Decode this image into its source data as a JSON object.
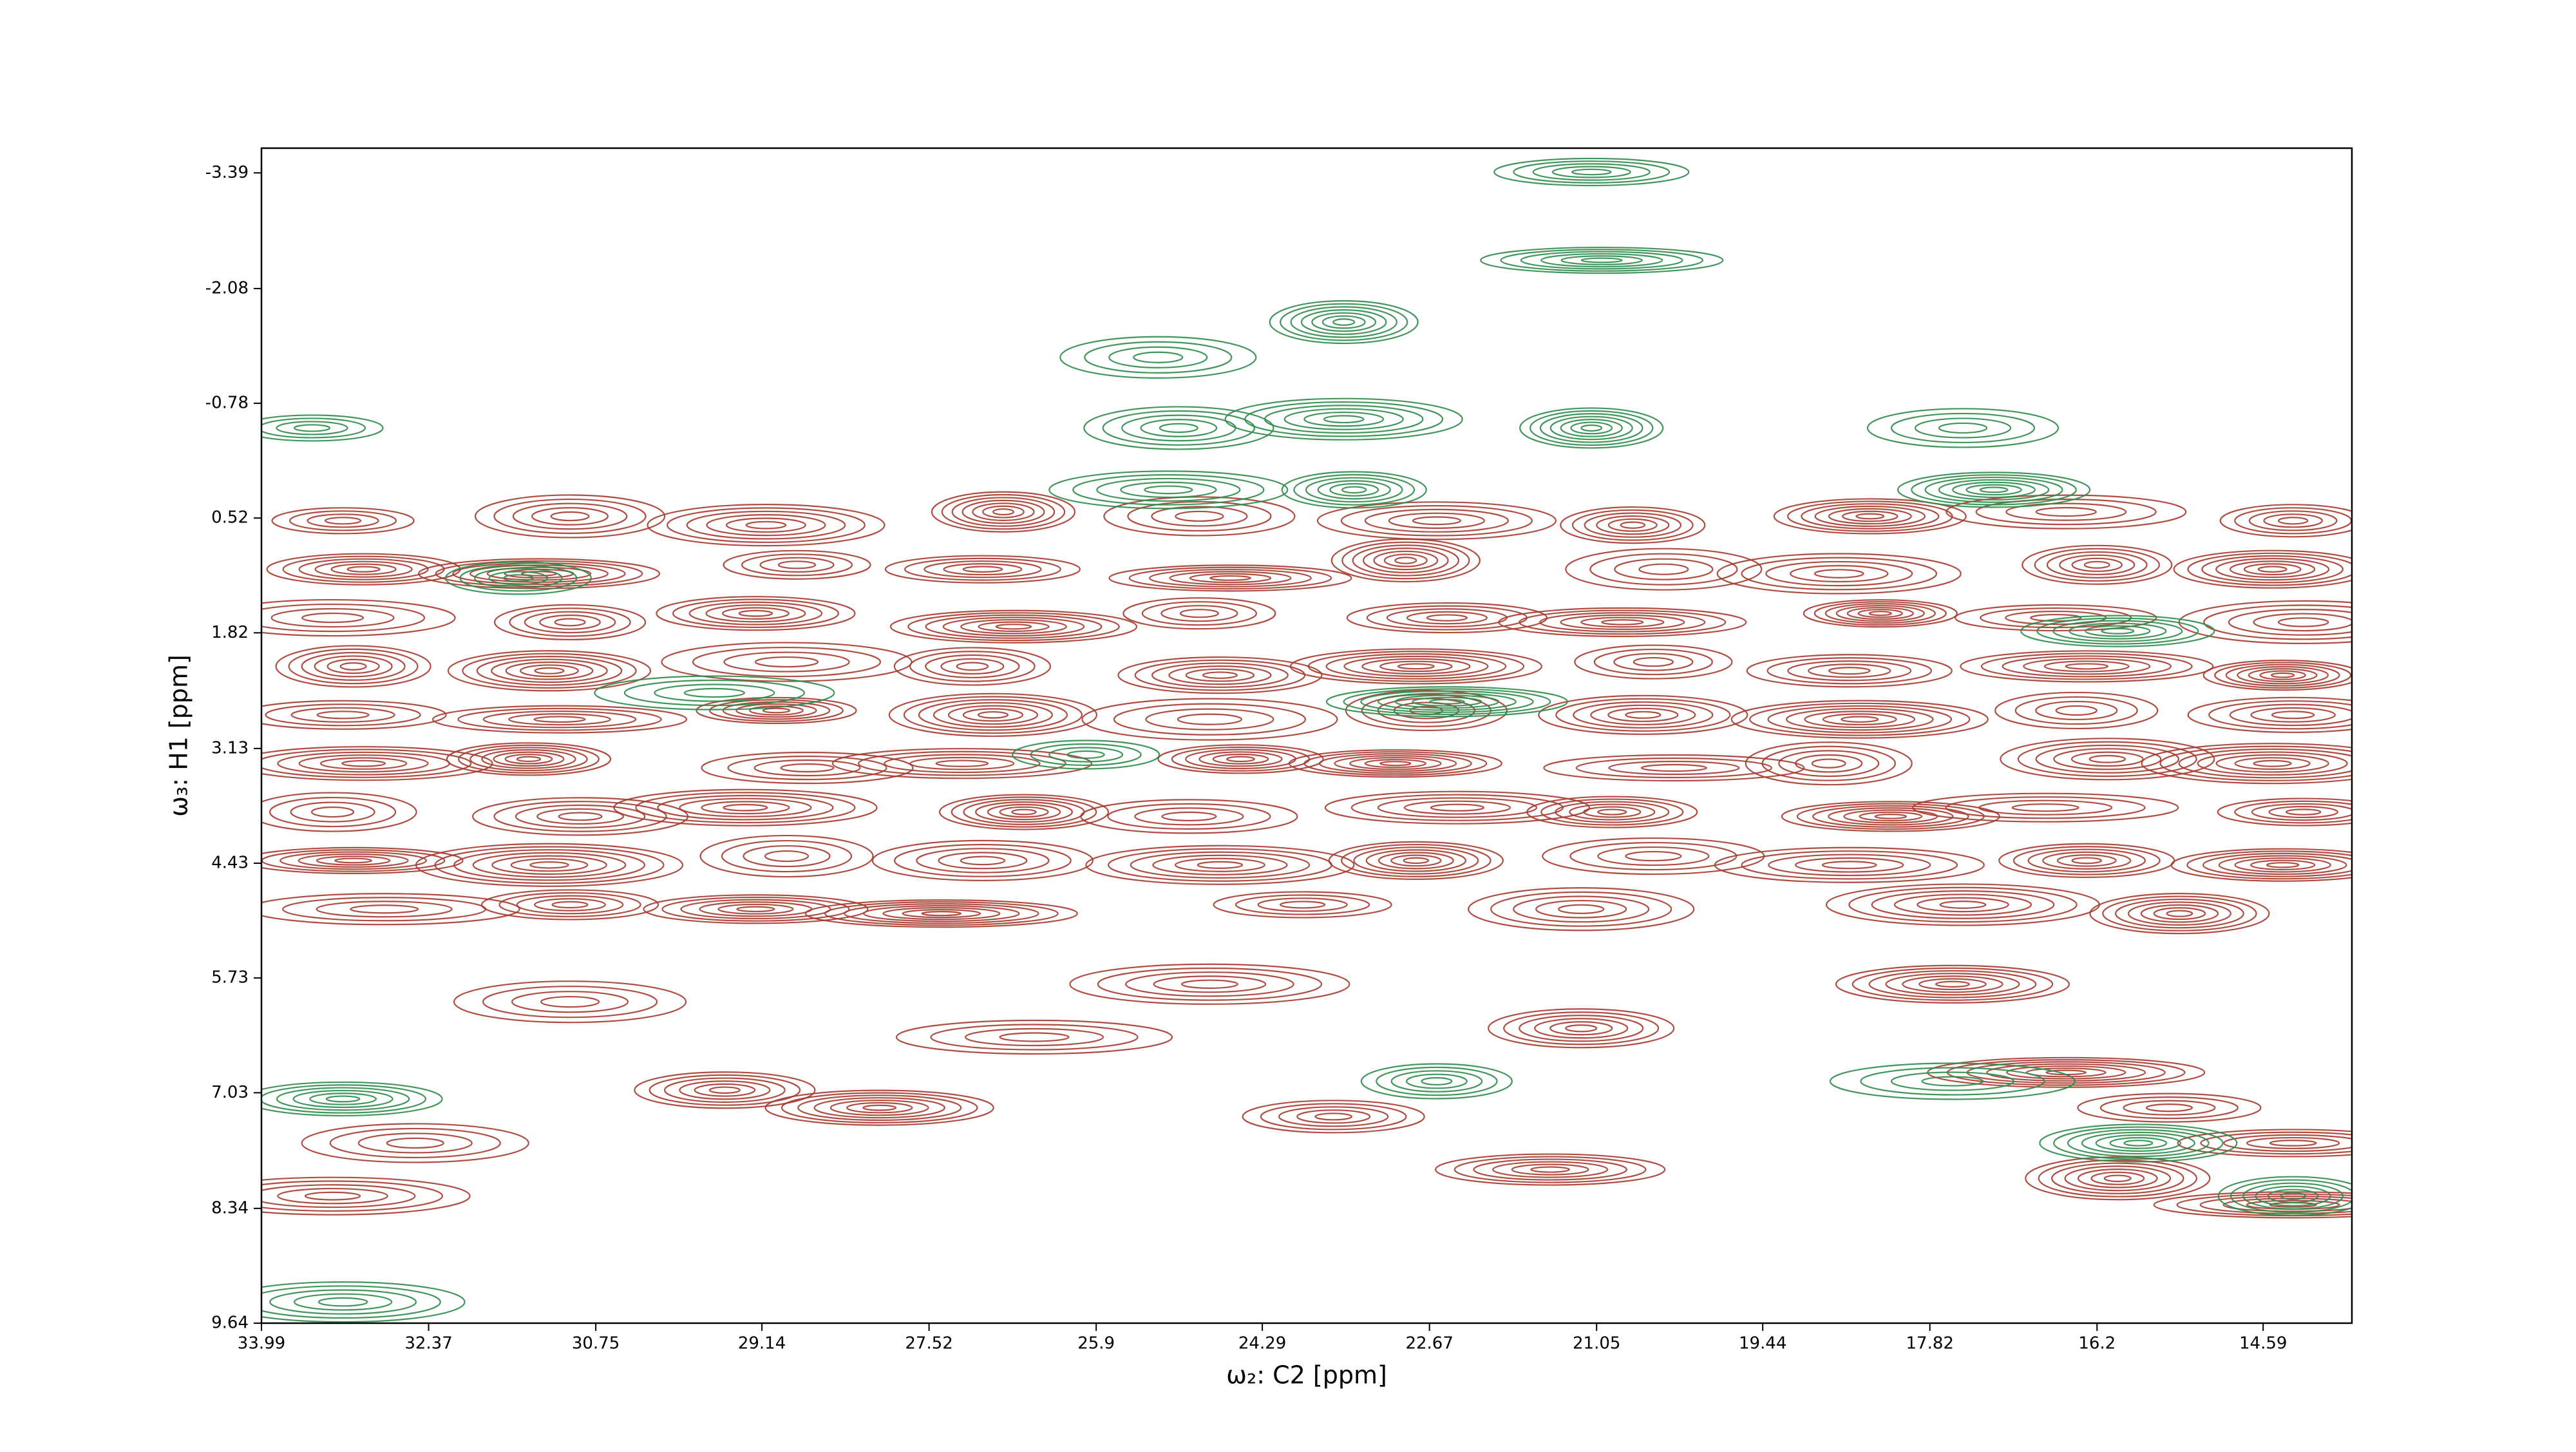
{
  "chart_data": {
    "type": "contour",
    "x_label": "ω₂: C2 [ppm]",
    "y_label": "ω₃: H1 [ppm]",
    "xlim": [
      33.99,
      13.73
    ],
    "ylim": [
      9.64,
      -3.67
    ],
    "xticks": [
      33.99,
      32.37,
      30.75,
      29.14,
      27.52,
      25.9,
      24.29,
      22.67,
      21.05,
      19.44,
      17.82,
      16.2,
      14.59
    ],
    "yticks": [
      -3.39,
      -2.08,
      -0.78,
      0.52,
      1.82,
      3.13,
      4.43,
      5.73,
      7.03,
      8.34,
      9.64
    ],
    "series": [
      {
        "color": "#a63a2e",
        "x": [
          33.2,
          31.0,
          29.1,
          26.8,
          24.9,
          22.6,
          20.7,
          18.4,
          16.5,
          14.3,
          33.0,
          31.3,
          28.8,
          27.0,
          24.6,
          22.9,
          20.4,
          18.7,
          16.2,
          14.5,
          33.3,
          31.0,
          29.2,
          26.7,
          24.9,
          22.5,
          20.8,
          18.3,
          16.6,
          14.2,
          33.1,
          31.2,
          28.9,
          27.1,
          24.7,
          22.8,
          20.5,
          18.6,
          16.3,
          14.4,
          33.2,
          31.1,
          29.0,
          26.9,
          24.8,
          22.7,
          20.6,
          18.5,
          16.4,
          14.3,
          33.0,
          31.4,
          28.7,
          27.2,
          24.5,
          23.0,
          20.3,
          18.8,
          16.1,
          14.5,
          33.3,
          30.9,
          29.3,
          26.6,
          25.0,
          22.4,
          20.9,
          18.2,
          16.7,
          14.2,
          33.1,
          31.2,
          28.9,
          27.0,
          24.7,
          22.8,
          20.5,
          18.6,
          16.3,
          14.4,
          32.8,
          31.0,
          29.2,
          27.4,
          23.9,
          21.2,
          17.5,
          15.4,
          32.5,
          33.3,
          29.5,
          28.0,
          26.5,
          23.6,
          21.5,
          16.5,
          15.5,
          14.3,
          14.3,
          16.0,
          31.0,
          24.8,
          21.2,
          17.6
        ],
        "y": [
          0.55,
          0.5,
          0.6,
          0.45,
          0.5,
          0.55,
          0.6,
          0.5,
          0.45,
          0.55,
          1.1,
          1.15,
          1.05,
          1.1,
          1.2,
          1.0,
          1.1,
          1.15,
          1.05,
          1.1,
          1.65,
          1.7,
          1.6,
          1.75,
          1.6,
          1.65,
          1.7,
          1.6,
          1.65,
          1.7,
          2.2,
          2.25,
          2.15,
          2.2,
          2.3,
          2.2,
          2.15,
          2.25,
          2.2,
          2.3,
          2.75,
          2.8,
          2.7,
          2.75,
          2.8,
          2.7,
          2.75,
          2.8,
          2.7,
          2.75,
          3.3,
          3.25,
          3.35,
          3.3,
          3.25,
          3.3,
          3.35,
          3.3,
          3.25,
          3.3,
          3.85,
          3.9,
          3.8,
          3.85,
          3.9,
          3.8,
          3.85,
          3.9,
          3.8,
          3.85,
          4.4,
          4.45,
          4.35,
          4.4,
          4.45,
          4.4,
          4.35,
          4.45,
          4.4,
          4.45,
          4.95,
          4.9,
          4.95,
          5.0,
          4.9,
          4.95,
          4.9,
          5.0,
          7.6,
          8.2,
          7.0,
          7.2,
          6.4,
          7.3,
          7.9,
          6.8,
          7.2,
          7.6,
          8.3,
          8.0,
          6.0,
          5.8,
          6.3,
          5.8
        ]
      },
      {
        "color": "#2e8b4a",
        "x": [
          33.5,
          25.1,
          23.5,
          21.1,
          17.5,
          25.2,
          23.4,
          17.2,
          29.6,
          31.5,
          16.0,
          22.5,
          26.0,
          21.1,
          21.0,
          23.5,
          25.3,
          33.2,
          14.3,
          15.8,
          17.6,
          22.6,
          33.2
        ],
        "y": [
          -0.5,
          -0.5,
          -0.6,
          -0.5,
          -0.5,
          0.2,
          0.2,
          0.2,
          2.5,
          1.2,
          1.8,
          2.6,
          3.2,
          -3.4,
          -2.4,
          -1.7,
          -1.3,
          9.4,
          8.2,
          7.6,
          6.9,
          6.9,
          7.1
        ]
      }
    ]
  }
}
